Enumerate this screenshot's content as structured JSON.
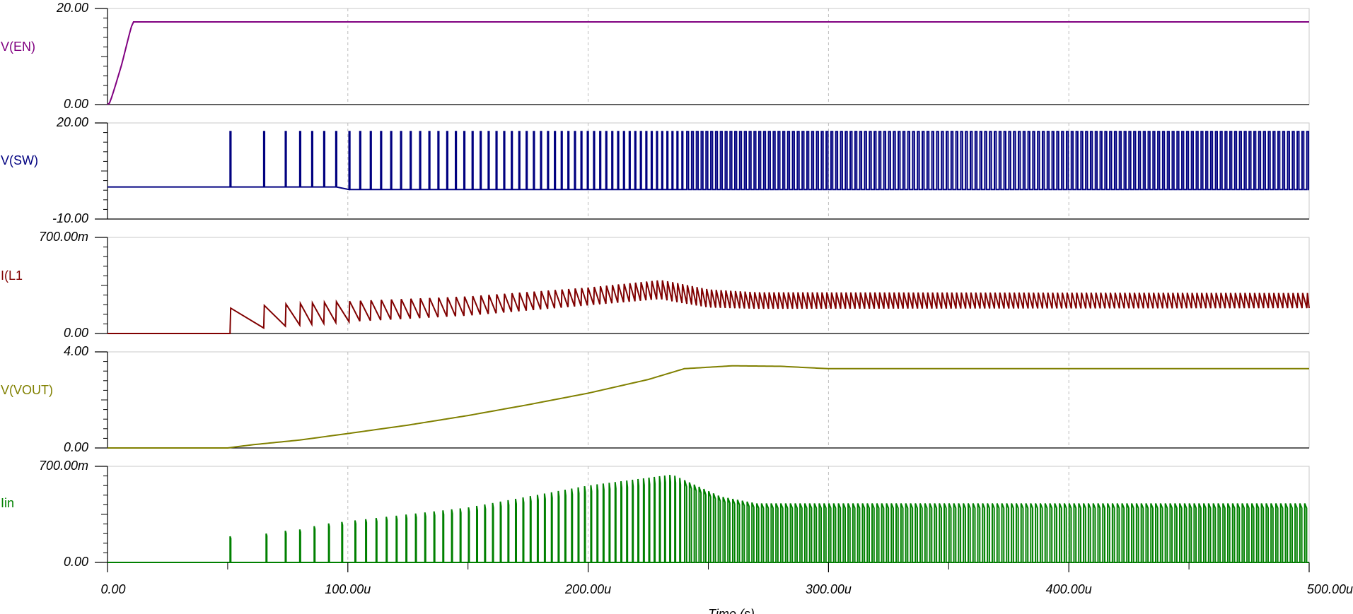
{
  "chart_data": {
    "type": "line",
    "title": "",
    "xlabel": "Time (s)",
    "x_range": [
      0,
      500
    ],
    "x_unit": "u",
    "x_ticks": [
      0,
      100,
      200,
      300,
      400,
      500
    ],
    "x_tick_labels": [
      "0.00",
      "100.00u",
      "200.00u",
      "300.00u",
      "400.00u",
      "500.00u"
    ],
    "grid": true,
    "panels": [
      {
        "name": "V(EN)",
        "color": "#800080",
        "ylim": [
          0,
          20
        ],
        "y_tick_labels": [
          "0.00",
          "20.00"
        ],
        "kind": "smooth",
        "points": [
          [
            0,
            0
          ],
          [
            1,
            0.4
          ],
          [
            3,
            3.5
          ],
          [
            6,
            8.5
          ],
          [
            9,
            14.5
          ],
          [
            10.5,
            17.2
          ],
          [
            500,
            17.2
          ]
        ]
      },
      {
        "name": "V(SW)",
        "color": "#000080",
        "ylim": [
          -10,
          20
        ],
        "y_tick_labels": [
          "-10.00",
          "20.00"
        ],
        "kind": "switching",
        "base": 0,
        "high": 17.3,
        "low": -0.8,
        "pulse_times": [
          51,
          65,
          74,
          80,
          85,
          90,
          95
        ]
      },
      {
        "name": "I(L1",
        "color": "#800000",
        "ylim": [
          0,
          700
        ],
        "y_unit": "m",
        "y_tick_labels": [
          "0.00",
          "700.00m"
        ],
        "kind": "ripple",
        "center": [
          [
            0,
            0
          ],
          [
            50,
            0
          ],
          [
            51,
            100
          ],
          [
            70,
            130
          ],
          [
            100,
            160
          ],
          [
            150,
            200
          ],
          [
            200,
            270
          ],
          [
            230,
            320
          ],
          [
            250,
            255
          ],
          [
            270,
            240
          ],
          [
            500,
            240
          ]
        ],
        "amplitude": [
          [
            0,
            0
          ],
          [
            50,
            0
          ],
          [
            51,
            85
          ],
          [
            100,
            75
          ],
          [
            200,
            65
          ],
          [
            235,
            70
          ],
          [
            270,
            60
          ],
          [
            500,
            55
          ]
        ]
      },
      {
        "name": "V(VOUT)",
        "color": "#808000",
        "ylim": [
          0,
          4
        ],
        "y_tick_labels": [
          "0.00",
          "4.00"
        ],
        "kind": "smooth",
        "points": [
          [
            0,
            0
          ],
          [
            50,
            0
          ],
          [
            60,
            0.13
          ],
          [
            80,
            0.33
          ],
          [
            100,
            0.6
          ],
          [
            125,
            0.95
          ],
          [
            150,
            1.35
          ],
          [
            175,
            1.8
          ],
          [
            200,
            2.28
          ],
          [
            225,
            2.85
          ],
          [
            240,
            3.3
          ],
          [
            260,
            3.42
          ],
          [
            280,
            3.4
          ],
          [
            300,
            3.3
          ],
          [
            500,
            3.3
          ]
        ]
      },
      {
        "name": "Iin",
        "color": "#008000",
        "ylim": [
          0,
          700
        ],
        "y_unit": "m",
        "y_tick_labels": [
          "0.00",
          "700.00m"
        ],
        "kind": "pulses",
        "pulse_times": [
          51,
          66,
          74,
          80,
          86,
          92
        ],
        "peak": [
          [
            50,
            180
          ],
          [
            51,
            190
          ],
          [
            66,
            210
          ],
          [
            74,
            230
          ],
          [
            80,
            240
          ],
          [
            90,
            280
          ],
          [
            100,
            300
          ],
          [
            150,
            400
          ],
          [
            200,
            560
          ],
          [
            235,
            640
          ],
          [
            255,
            480
          ],
          [
            270,
            430
          ],
          [
            500,
            430
          ]
        ]
      }
    ]
  }
}
